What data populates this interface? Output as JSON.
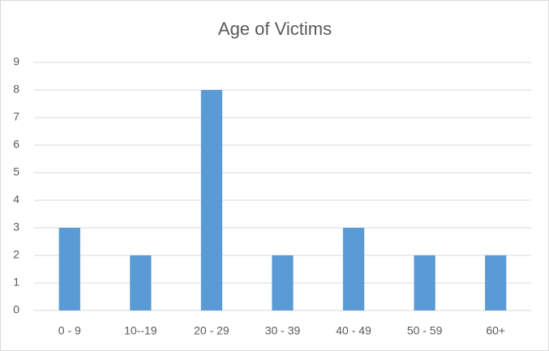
{
  "chart_data": {
    "type": "bar",
    "title": "Age of Victims",
    "categories": [
      "0 - 9",
      "10--19",
      "20 - 29",
      "30 - 39",
      "40 - 49",
      "50 - 59",
      "60+"
    ],
    "values": [
      3,
      2,
      8,
      2,
      3,
      2,
      2
    ],
    "color": "#5b9bd5",
    "ylim": [
      0,
      9
    ],
    "yticks": [
      0,
      1,
      2,
      3,
      4,
      5,
      6,
      7,
      8,
      9
    ],
    "grid": true
  }
}
